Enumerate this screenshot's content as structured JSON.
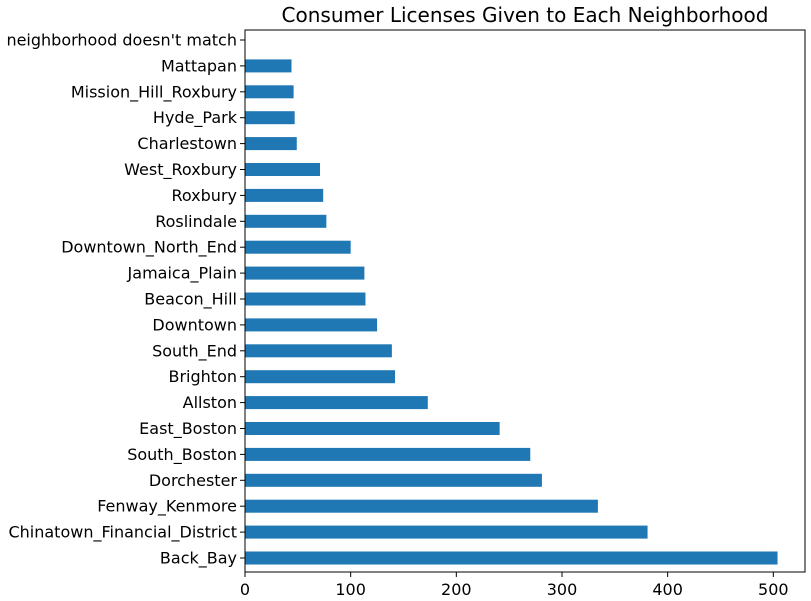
{
  "chart_data": {
    "type": "bar",
    "orientation": "horizontal",
    "title": "Consumer Licenses Given to Each Neighborhood",
    "xlabel": "",
    "ylabel": "",
    "xlim": [
      0,
      530
    ],
    "xticks": [
      0,
      100,
      200,
      300,
      400,
      500
    ],
    "grid": false,
    "bar_color": "#1f77b4",
    "categories": [
      "Back_Bay",
      "Chinatown_Financial_District",
      "Fenway_Kenmore",
      "Dorchester",
      "South_Boston",
      "East_Boston",
      "Allston",
      "Brighton",
      "South_End",
      "Downtown",
      "Beacon_Hill",
      "Jamaica_Plain",
      "Downtown_North_End",
      "Roslindale",
      "Roxbury",
      "West_Roxbury",
      "Charlestown",
      "Hyde_Park",
      "Mission_Hill_Roxbury",
      "Mattapan",
      "neighborhood doesn't match"
    ],
    "values": [
      504,
      381,
      334,
      281,
      270,
      241,
      173,
      142,
      139,
      125,
      114,
      113,
      100,
      77,
      74,
      71,
      49,
      47,
      46,
      44,
      0
    ]
  }
}
